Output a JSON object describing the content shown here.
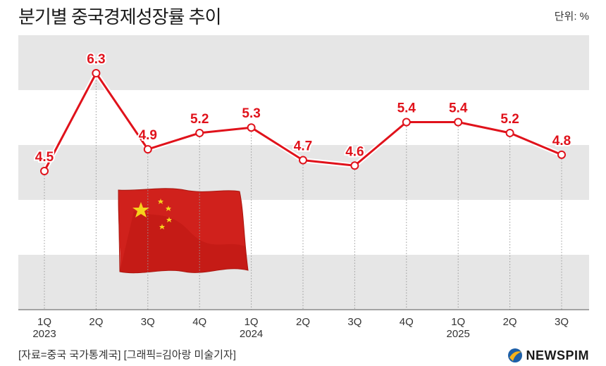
{
  "header": {
    "title": "분기별 중국경제성장률 추이",
    "unit": "단위: %"
  },
  "footer": {
    "source": "[자료=중국 국가통계국] [그래픽=김아랑 미술기자]",
    "logo": "NEWSPIM"
  },
  "colors": {
    "line": "#e0121b",
    "band": "#e6e6e6",
    "text": "#333333",
    "flag_red": "#d0211c",
    "flag_star": "#f6d21c"
  },
  "chart_data": {
    "type": "line",
    "title": "분기별 중국경제성장률 추이",
    "xlabel": "",
    "ylabel": "",
    "categories": [
      "1Q",
      "2Q",
      "3Q",
      "4Q",
      "1Q",
      "2Q",
      "3Q",
      "4Q",
      "1Q",
      "2Q",
      "3Q"
    ],
    "year_labels": [
      "2023",
      "",
      "",
      "",
      "2024",
      "",
      "",
      "",
      "2025",
      "",
      ""
    ],
    "values": [
      4.5,
      6.3,
      4.9,
      5.2,
      5.3,
      4.7,
      4.6,
      5.4,
      5.4,
      5.2,
      4.8
    ],
    "value_labels": [
      "4.5",
      "6.3",
      "4.9",
      "5.2",
      "5.3",
      "4.7",
      "4.6",
      "5.4",
      "5.4",
      "5.2",
      "4.8"
    ],
    "grid": false,
    "legend": "none"
  }
}
